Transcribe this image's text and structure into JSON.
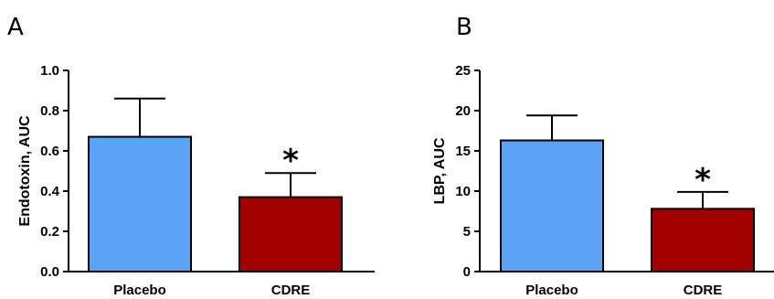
{
  "colors": {
    "placebo": "#5BA3F5",
    "cdre": "#A30000",
    "axis": "#000000"
  },
  "chart_data": [
    {
      "type": "bar",
      "panel": "A",
      "categories": [
        "Placebo",
        "CDRE"
      ],
      "values": [
        0.67,
        0.37
      ],
      "error_upper": [
        0.86,
        0.49
      ],
      "significance": [
        "",
        "*"
      ],
      "ylabel": "Endotoxin, AUC",
      "ylim": [
        0,
        1.0
      ],
      "yticks": [
        "0.0",
        "0.2",
        "0.4",
        "0.6",
        "0.8",
        "1.0"
      ],
      "ytick_values": [
        0,
        0.2,
        0.4,
        0.6,
        0.8,
        1.0
      ]
    },
    {
      "type": "bar",
      "panel": "B",
      "categories": [
        "Placebo",
        "CDRE"
      ],
      "values": [
        16.3,
        7.8
      ],
      "error_upper": [
        19.4,
        9.9
      ],
      "significance": [
        "",
        "*"
      ],
      "ylabel": "LBP, AUC",
      "ylim": [
        0,
        25
      ],
      "yticks": [
        "0",
        "5",
        "10",
        "15",
        "20",
        "25"
      ],
      "ytick_values": [
        0,
        5,
        10,
        15,
        20,
        25
      ]
    }
  ]
}
